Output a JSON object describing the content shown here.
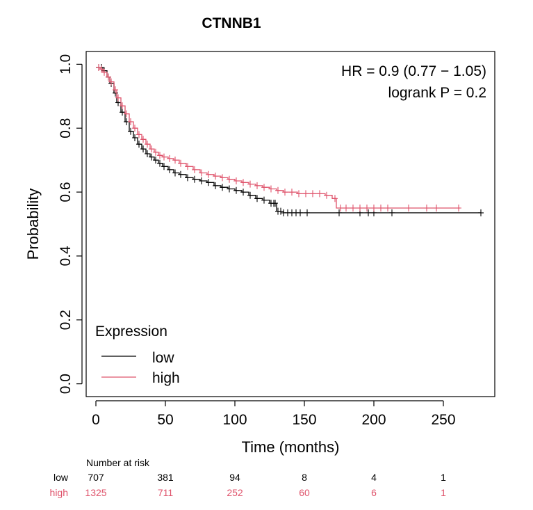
{
  "chart_data": {
    "type": "line",
    "title": "CTNNB1",
    "xlabel": "Time (months)",
    "ylabel": "Probability",
    "xlim": [
      -7,
      287
    ],
    "ylim": [
      -0.04,
      1.04
    ],
    "x_ticks": [
      0,
      50,
      100,
      150,
      200,
      250
    ],
    "y_ticks": [
      0.0,
      0.2,
      0.4,
      0.6,
      0.8,
      1.0
    ],
    "x_tick_labels": [
      "0",
      "50",
      "100",
      "150",
      "200",
      "250"
    ],
    "y_tick_labels": [
      "0.0",
      "0.2",
      "0.4",
      "0.6",
      "0.8",
      "1.0"
    ],
    "annotations": [
      "HR = 0.9 (0.77 − 1.05)",
      "logrank P = 0.2"
    ],
    "legend": {
      "title": "Expression",
      "placement": "bottom-left",
      "entries": [
        {
          "label": "low",
          "color": "#000000"
        },
        {
          "label": "high",
          "color": "#DF536B"
        }
      ]
    },
    "series": [
      {
        "name": "low",
        "color": "#000000",
        "points": [
          [
            0,
            0.99
          ],
          [
            3,
            0.99
          ],
          [
            5,
            0.98
          ],
          [
            8,
            0.96
          ],
          [
            10,
            0.94
          ],
          [
            13,
            0.91
          ],
          [
            15,
            0.88
          ],
          [
            18,
            0.85
          ],
          [
            21,
            0.82
          ],
          [
            24,
            0.79
          ],
          [
            27,
            0.77
          ],
          [
            30,
            0.75
          ],
          [
            33,
            0.735
          ],
          [
            36,
            0.72
          ],
          [
            39,
            0.71
          ],
          [
            42,
            0.7
          ],
          [
            45,
            0.69
          ],
          [
            48,
            0.68
          ],
          [
            52,
            0.67
          ],
          [
            56,
            0.66
          ],
          [
            60,
            0.655
          ],
          [
            65,
            0.645
          ],
          [
            70,
            0.64
          ],
          [
            75,
            0.635
          ],
          [
            80,
            0.63
          ],
          [
            85,
            0.62
          ],
          [
            90,
            0.615
          ],
          [
            95,
            0.61
          ],
          [
            100,
            0.605
          ],
          [
            105,
            0.6
          ],
          [
            110,
            0.59
          ],
          [
            115,
            0.58
          ],
          [
            120,
            0.575
          ],
          [
            125,
            0.565
          ],
          [
            130,
            0.54
          ],
          [
            135,
            0.535
          ],
          [
            140,
            0.535
          ],
          [
            150,
            0.535
          ],
          [
            160,
            0.535
          ],
          [
            175,
            0.535
          ],
          [
            200,
            0.535
          ],
          [
            215,
            0.535
          ],
          [
            250,
            0.535
          ],
          [
            277,
            0.535
          ]
        ],
        "censor_times": [
          2,
          4,
          6,
          9,
          11,
          14,
          16,
          19,
          22,
          25,
          28,
          31,
          34,
          37,
          40,
          43,
          46,
          49,
          53,
          57,
          61,
          66,
          71,
          76,
          81,
          86,
          91,
          96,
          101,
          106,
          111,
          116,
          121,
          126,
          128,
          129,
          131,
          133,
          135,
          138,
          141,
          144,
          147,
          152,
          175,
          190,
          196,
          200,
          213,
          277
        ]
      },
      {
        "name": "high",
        "color": "#DF536B",
        "points": [
          [
            0,
            0.99
          ],
          [
            3,
            0.985
          ],
          [
            5,
            0.975
          ],
          [
            8,
            0.96
          ],
          [
            10,
            0.945
          ],
          [
            13,
            0.92
          ],
          [
            15,
            0.895
          ],
          [
            18,
            0.87
          ],
          [
            21,
            0.845
          ],
          [
            24,
            0.82
          ],
          [
            27,
            0.8
          ],
          [
            30,
            0.78
          ],
          [
            33,
            0.765
          ],
          [
            36,
            0.75
          ],
          [
            39,
            0.735
          ],
          [
            42,
            0.725
          ],
          [
            45,
            0.715
          ],
          [
            48,
            0.71
          ],
          [
            52,
            0.705
          ],
          [
            56,
            0.7
          ],
          [
            60,
            0.69
          ],
          [
            65,
            0.68
          ],
          [
            70,
            0.67
          ],
          [
            75,
            0.66
          ],
          [
            80,
            0.655
          ],
          [
            85,
            0.65
          ],
          [
            90,
            0.645
          ],
          [
            95,
            0.64
          ],
          [
            100,
            0.635
          ],
          [
            105,
            0.63
          ],
          [
            110,
            0.625
          ],
          [
            115,
            0.62
          ],
          [
            120,
            0.615
          ],
          [
            125,
            0.61
          ],
          [
            130,
            0.605
          ],
          [
            135,
            0.6
          ],
          [
            140,
            0.6
          ],
          [
            145,
            0.595
          ],
          [
            150,
            0.595
          ],
          [
            155,
            0.595
          ],
          [
            160,
            0.595
          ],
          [
            165,
            0.59
          ],
          [
            170,
            0.58
          ],
          [
            173,
            0.55
          ],
          [
            180,
            0.55
          ],
          [
            200,
            0.55
          ],
          [
            225,
            0.55
          ],
          [
            250,
            0.55
          ],
          [
            262,
            0.55
          ]
        ],
        "censor_times": [
          2,
          4,
          6,
          9,
          11,
          14,
          16,
          19,
          22,
          25,
          28,
          31,
          34,
          37,
          40,
          43,
          46,
          49,
          53,
          57,
          61,
          66,
          71,
          76,
          81,
          86,
          91,
          96,
          101,
          106,
          111,
          116,
          121,
          126,
          131,
          136,
          141,
          146,
          151,
          156,
          161,
          166,
          172,
          176,
          180,
          185,
          190,
          195,
          200,
          205,
          210,
          225,
          238,
          245,
          261
        ]
      }
    ],
    "risk_table": {
      "heading": "Number at risk",
      "times": [
        0,
        50,
        100,
        150,
        200,
        250
      ],
      "rows": [
        {
          "label": "low",
          "color": "#000000",
          "values": [
            "707",
            "381",
            "94",
            "8",
            "4",
            "1"
          ]
        },
        {
          "label": "high",
          "color": "#DF536B",
          "values": [
            "1325",
            "711",
            "252",
            "60",
            "6",
            "1"
          ]
        }
      ]
    }
  }
}
